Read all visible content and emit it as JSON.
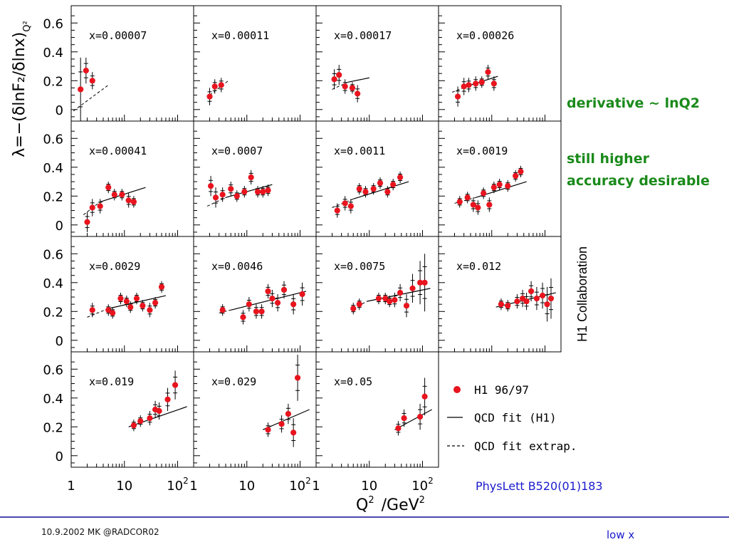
{
  "chart_data": {
    "type": "scatter",
    "ylabel": "λ=−(δlnF₂/δlnx)",
    "ylabel_sub": "Q²",
    "xlabel_main": "Q",
    "xlabel_sup": "2",
    "xlabel_unit": "/GeV",
    "xlabel_unit_sup": "2",
    "x_scale": "log",
    "xlim": [
      1,
      200
    ],
    "ylim": [
      -0.08,
      0.72
    ],
    "y_ticks": [
      "0",
      "0.2",
      "0.4",
      "0.6"
    ],
    "x_ticks": [
      {
        "v": 1,
        "base": "1",
        "sup": ""
      },
      {
        "v": 10,
        "base": "10",
        "sup": ""
      },
      {
        "v": 100,
        "base": "10",
        "sup": "2"
      }
    ],
    "grid": false,
    "panels": [
      {
        "label": "x=0.00007",
        "points": [
          [
            1.5,
            0.14,
            0.22
          ],
          [
            1.9,
            0.27,
            0.09
          ],
          [
            2.5,
            0.2,
            0.06
          ]
        ],
        "fit": [],
        "extrap": [
          [
            1.1,
            -0.01
          ],
          [
            5,
            0.17
          ]
        ]
      },
      {
        "label": "x=0.00011",
        "points": [
          [
            2.0,
            0.09,
            0.06
          ],
          [
            2.5,
            0.16,
            0.05
          ],
          [
            3.3,
            0.17,
            0.05
          ]
        ],
        "fit": [],
        "extrap": [
          [
            2,
            0.1
          ],
          [
            4.5,
            0.2
          ]
        ]
      },
      {
        "label": "x=0.00017",
        "points": [
          [
            2.2,
            0.21,
            0.07
          ],
          [
            2.7,
            0.24,
            0.07
          ],
          [
            3.5,
            0.16,
            0.05
          ],
          [
            4.8,
            0.15,
            0.04
          ],
          [
            6.0,
            0.11,
            0.06
          ]
        ],
        "fit": [
          [
            4,
            0.19
          ],
          [
            10,
            0.22
          ]
        ],
        "extrap": [
          [
            2,
            0.14
          ],
          [
            4,
            0.19
          ]
        ]
      },
      {
        "label": "x=0.00026",
        "points": [
          [
            2.3,
            0.09,
            0.07
          ],
          [
            3.0,
            0.16,
            0.06
          ],
          [
            3.7,
            0.17,
            0.05
          ],
          [
            5.0,
            0.18,
            0.05
          ],
          [
            6.5,
            0.19,
            0.04
          ],
          [
            8.5,
            0.26,
            0.05
          ],
          [
            11,
            0.18,
            0.05
          ]
        ],
        "fit": [
          [
            4,
            0.17
          ],
          [
            13,
            0.23
          ]
        ],
        "extrap": [
          [
            1.8,
            0.12
          ],
          [
            4,
            0.17
          ]
        ]
      },
      {
        "label": "x=0.00041",
        "points": [
          [
            2.0,
            0.02,
            0.07
          ],
          [
            2.5,
            0.12,
            0.06
          ],
          [
            3.5,
            0.13,
            0.05
          ],
          [
            5.0,
            0.26,
            0.04
          ],
          [
            6.5,
            0.21,
            0.04
          ],
          [
            9,
            0.21,
            0.04
          ],
          [
            12,
            0.17,
            0.05
          ],
          [
            15,
            0.16,
            0.04
          ]
        ],
        "fit": [
          [
            3.5,
            0.16
          ],
          [
            25,
            0.26
          ]
        ],
        "extrap": [
          [
            1.7,
            0.07
          ],
          [
            3.5,
            0.16
          ]
        ]
      },
      {
        "label": "x=0.0007",
        "points": [
          [
            2.1,
            0.27,
            0.07
          ],
          [
            2.6,
            0.19,
            0.07
          ],
          [
            3.5,
            0.21,
            0.05
          ],
          [
            5,
            0.25,
            0.05
          ],
          [
            6.5,
            0.2,
            0.04
          ],
          [
            9,
            0.23,
            0.04
          ],
          [
            12,
            0.33,
            0.05
          ],
          [
            16,
            0.23,
            0.04
          ],
          [
            20,
            0.23,
            0.04
          ],
          [
            25,
            0.24,
            0.04
          ]
        ],
        "fit": [
          [
            4,
            0.19
          ],
          [
            30,
            0.28
          ]
        ],
        "extrap": [
          [
            1.8,
            0.13
          ],
          [
            4,
            0.19
          ]
        ]
      },
      {
        "label": "x=0.0011",
        "points": [
          [
            2.5,
            0.1,
            0.05
          ],
          [
            3.5,
            0.15,
            0.05
          ],
          [
            4.5,
            0.13,
            0.05
          ],
          [
            6.5,
            0.25,
            0.04
          ],
          [
            8.5,
            0.23,
            0.04
          ],
          [
            12,
            0.25,
            0.04
          ],
          [
            16,
            0.29,
            0.04
          ],
          [
            22,
            0.23,
            0.04
          ],
          [
            28,
            0.28,
            0.04
          ],
          [
            38,
            0.33,
            0.04
          ]
        ],
        "fit": [
          [
            5,
            0.18
          ],
          [
            55,
            0.3
          ]
        ],
        "extrap": [
          [
            2,
            0.12
          ],
          [
            5,
            0.18
          ]
        ]
      },
      {
        "label": "x=0.0019",
        "points": [
          [
            2.5,
            0.16,
            0.04
          ],
          [
            3.5,
            0.19,
            0.04
          ],
          [
            4.5,
            0.14,
            0.05
          ],
          [
            5.5,
            0.12,
            0.05
          ],
          [
            7,
            0.22,
            0.04
          ],
          [
            9,
            0.14,
            0.05
          ],
          [
            11,
            0.26,
            0.04
          ],
          [
            14,
            0.28,
            0.04
          ],
          [
            20,
            0.27,
            0.04
          ],
          [
            28,
            0.34,
            0.04
          ],
          [
            35,
            0.37,
            0.04
          ]
        ],
        "fit": [
          [
            5,
            0.19
          ],
          [
            45,
            0.3
          ]
        ],
        "extrap": [
          [
            2,
            0.15
          ],
          [
            5,
            0.19
          ]
        ]
      },
      {
        "label": "x=0.0029",
        "points": [
          [
            2.5,
            0.21,
            0.05
          ],
          [
            5,
            0.21,
            0.04
          ],
          [
            6,
            0.19,
            0.04
          ],
          [
            8.5,
            0.29,
            0.04
          ],
          [
            11,
            0.27,
            0.04
          ],
          [
            13,
            0.23,
            0.04
          ],
          [
            17,
            0.29,
            0.04
          ],
          [
            22,
            0.24,
            0.04
          ],
          [
            30,
            0.21,
            0.05
          ],
          [
            38,
            0.26,
            0.04
          ],
          [
            50,
            0.37,
            0.04
          ]
        ],
        "fit": [
          [
            5,
            0.22
          ],
          [
            60,
            0.31
          ]
        ],
        "extrap": [
          [
            2,
            0.16
          ],
          [
            5,
            0.22
          ]
        ]
      },
      {
        "label": "x=0.0046",
        "points": [
          [
            3.5,
            0.21,
            0.04
          ],
          [
            8.5,
            0.16,
            0.05
          ],
          [
            11,
            0.25,
            0.05
          ],
          [
            15,
            0.2,
            0.05
          ],
          [
            19,
            0.2,
            0.05
          ],
          [
            25,
            0.34,
            0.05
          ],
          [
            30,
            0.29,
            0.06
          ],
          [
            38,
            0.26,
            0.06
          ],
          [
            50,
            0.35,
            0.06
          ],
          [
            75,
            0.25,
            0.07
          ],
          [
            110,
            0.32,
            0.08
          ]
        ],
        "fit": [
          [
            5,
            0.21
          ],
          [
            130,
            0.34
          ]
        ],
        "extrap": [
          [
            3,
            0.19
          ],
          [
            5,
            0.21
          ]
        ]
      },
      {
        "label": "x=0.0075",
        "points": [
          [
            5,
            0.22,
            0.04
          ],
          [
            6.5,
            0.25,
            0.04
          ],
          [
            15,
            0.29,
            0.04
          ],
          [
            20,
            0.29,
            0.04
          ],
          [
            24,
            0.27,
            0.04
          ],
          [
            30,
            0.28,
            0.05
          ],
          [
            38,
            0.33,
            0.06
          ],
          [
            50,
            0.24,
            0.08
          ],
          [
            65,
            0.36,
            0.1
          ],
          [
            90,
            0.4,
            0.15
          ],
          [
            110,
            0.4,
            0.2
          ]
        ],
        "fit": [
          [
            9,
            0.27
          ],
          [
            140,
            0.36
          ]
        ],
        "extrap": [
          [
            5,
            0.22
          ],
          [
            9,
            0.27
          ]
        ]
      },
      {
        "label": "x=0.012",
        "points": [
          [
            15,
            0.25,
            0.04
          ],
          [
            20,
            0.24,
            0.04
          ],
          [
            30,
            0.27,
            0.05
          ],
          [
            38,
            0.29,
            0.06
          ],
          [
            45,
            0.27,
            0.06
          ],
          [
            55,
            0.34,
            0.07
          ],
          [
            70,
            0.29,
            0.08
          ],
          [
            90,
            0.31,
            0.09
          ],
          [
            110,
            0.25,
            0.12
          ],
          [
            130,
            0.29,
            0.14
          ]
        ],
        "fit": [
          [
            12,
            0.23
          ],
          [
            160,
            0.33
          ]
        ],
        "extrap": []
      },
      {
        "label": "x=0.019",
        "points": [
          [
            15,
            0.21,
            0.04
          ],
          [
            20,
            0.24,
            0.04
          ],
          [
            30,
            0.26,
            0.05
          ],
          [
            38,
            0.32,
            0.06
          ],
          [
            45,
            0.31,
            0.06
          ],
          [
            65,
            0.39,
            0.08
          ],
          [
            90,
            0.49,
            0.1
          ]
        ],
        "fit": [
          [
            12,
            0.2
          ],
          [
            150,
            0.34
          ]
        ],
        "extrap": []
      },
      {
        "label": "x=0.029",
        "points": [
          [
            25,
            0.18,
            0.05
          ],
          [
            45,
            0.22,
            0.06
          ],
          [
            60,
            0.29,
            0.07
          ],
          [
            75,
            0.16,
            0.1
          ],
          [
            90,
            0.54,
            0.16
          ]
        ],
        "fit": [
          [
            20,
            0.18
          ],
          [
            150,
            0.32
          ]
        ],
        "extrap": []
      },
      {
        "label": "x=0.05",
        "points": [
          [
            35,
            0.19,
            0.05
          ],
          [
            45,
            0.26,
            0.06
          ],
          [
            90,
            0.27,
            0.09
          ],
          [
            110,
            0.41,
            0.13
          ]
        ],
        "fit": [
          [
            30,
            0.18
          ],
          [
            150,
            0.32
          ]
        ],
        "extrap": []
      }
    ],
    "legend": {
      "placement": "bottom-right",
      "entries": [
        {
          "label": "H1 96/97",
          "marker": "dot"
        },
        {
          "label": "QCD fit (H1)",
          "marker": "solid"
        },
        {
          "label": "QCD fit extrap.",
          "marker": "dashed"
        }
      ]
    },
    "colors": {
      "points": "#e8141e",
      "ink": "#000000"
    }
  },
  "annotations": {
    "derivative": "derivative ~ lnQ2",
    "still_line1": "still higher",
    "still_line2": "accuracy desirable",
    "reference": "PhysLett B520(01)183",
    "collaboration": "H1 Collaboration"
  },
  "footer": {
    "left": "10.9.2002 MK @RADCOR02",
    "right": "low x"
  },
  "colors": {
    "green": "#1a8a1a",
    "blue": "#1a1acc",
    "footer_rule": "#4a4ab0"
  }
}
